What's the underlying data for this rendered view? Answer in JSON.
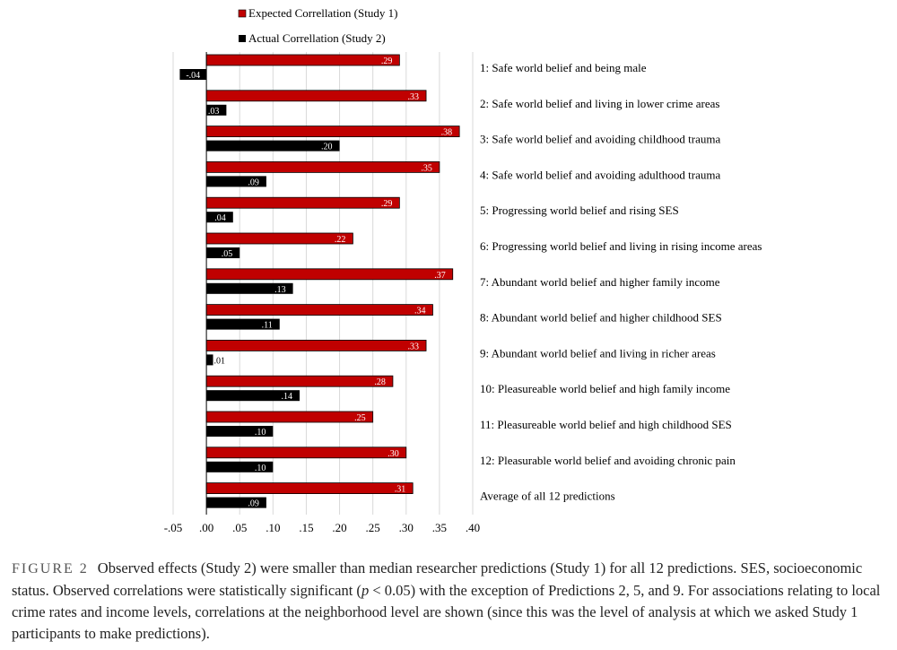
{
  "chart_data": {
    "type": "bar",
    "orientation": "horizontal",
    "title": "",
    "xlabel": "",
    "ylabel": "",
    "xlim": [
      -0.05,
      0.4
    ],
    "x_ticks": [
      "-.05",
      ".00",
      ".05",
      ".10",
      ".15",
      ".20",
      ".25",
      ".30",
      ".35",
      ".40"
    ],
    "grid": true,
    "legend_position": "top-left",
    "categories": [
      "1: Safe world belief and being male",
      "2: Safe world belief and living in lower crime areas",
      "3: Safe world belief and avoiding childhood trauma",
      "4: Safe world belief and avoiding adulthood trauma",
      "5: Progressing world belief and rising SES",
      "6: Progressing world belief and living in rising income areas",
      "7: Abundant world belief and higher family income",
      "8: Abundant world belief and higher childhood SES",
      "9: Abundant world belief and living in richer areas",
      "10: Pleasureable world belief and high family income",
      "11: Pleasureable world belief and high childhood SES",
      "12: Pleasurable world belief and avoiding chronic pain",
      "Average of all 12 predictions"
    ],
    "series": [
      {
        "name": "Expected Correllation (Study 1)",
        "color": "#c00000",
        "values": [
          0.29,
          0.33,
          0.38,
          0.35,
          0.29,
          0.22,
          0.37,
          0.34,
          0.33,
          0.28,
          0.25,
          0.3,
          0.31
        ],
        "labels": [
          ".29",
          ".33",
          ".38",
          ".35",
          ".29",
          ".22",
          ".37",
          ".34",
          ".33",
          ".28",
          ".25",
          ".30",
          ".31"
        ]
      },
      {
        "name": "Actual Correllation (Study 2)",
        "color": "#000000",
        "values": [
          -0.04,
          0.03,
          0.2,
          0.09,
          0.04,
          0.05,
          0.13,
          0.11,
          0.01,
          0.14,
          0.1,
          0.1,
          0.09
        ],
        "labels": [
          "-.04",
          ".03",
          ".20",
          ".09",
          ".04",
          ".05",
          ".13",
          ".11",
          ".01",
          ".14",
          ".10",
          ".10",
          ".09"
        ]
      }
    ]
  },
  "caption": {
    "label": "FIGURE 2",
    "part1": "Observed effects (Study 2) were smaller than median researcher predictions (Study 1) for all 12 predictions. SES, socioeconomic status. Observed correlations were statistically significant (",
    "p": "p",
    "part2": " < 0.05) with the exception of Predictions 2, 5, and 9. For associations relating to local crime rates and income levels, correlations at the neighborhood level are shown (since this was the level of analysis at which we asked Study 1 participants to make predictions)."
  }
}
